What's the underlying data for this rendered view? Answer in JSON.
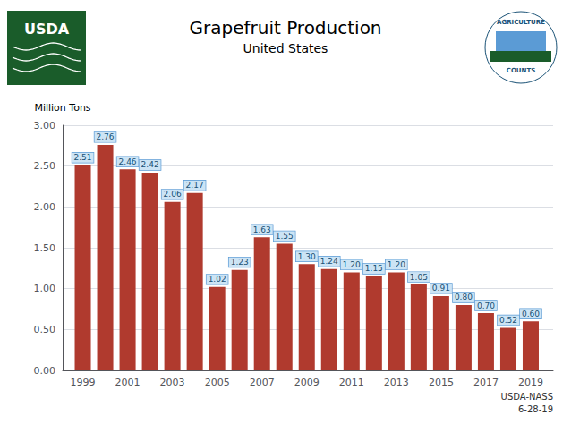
{
  "chart_data": {
    "type": "bar",
    "title": "Grapefruit Production",
    "subtitle": "United States",
    "ylabel": "Million Tons",
    "annotations": [
      "USDA-NASS",
      "6-28-19",
      "USDA",
      "AGRICULTURE",
      "COUNTS"
    ],
    "x": [
      1999,
      2000,
      2001,
      2002,
      2003,
      2004,
      2005,
      2006,
      2007,
      2008,
      2009,
      2010,
      2011,
      2012,
      2013,
      2014,
      2015,
      2016,
      2017,
      2018,
      2019
    ],
    "values": [
      2.51,
      2.76,
      2.46,
      2.42,
      2.06,
      2.17,
      1.02,
      1.23,
      1.63,
      1.55,
      1.3,
      1.24,
      1.2,
      1.15,
      1.2,
      1.05,
      0.91,
      0.8,
      0.7,
      0.52,
      0.6
    ],
    "value_labels": [
      "2.51",
      "2.76",
      "2.46",
      "2.42",
      "2.06",
      "2.17",
      "1.02",
      "1.23",
      "1.63",
      "1.55",
      "1.30",
      "1.24",
      "1.20",
      "1.15",
      "1.20",
      "1.05",
      "0.91",
      "0.80",
      "0.70",
      "0.52",
      "0.60"
    ],
    "data_labels": true,
    "color": "#b03a2e",
    "xlim": [
      1998.1,
      2020.0
    ],
    "xticks": [
      1999,
      2001,
      2003,
      2005,
      2007,
      2009,
      2011,
      2013,
      2015,
      2017,
      2019
    ],
    "ylim": [
      0.0,
      3.0
    ],
    "yticks": [
      {
        "value": 0.0,
        "label": "0.00"
      },
      {
        "value": 0.5,
        "label": "0.50"
      },
      {
        "value": 1.0,
        "label": "1.00"
      },
      {
        "value": 1.5,
        "label": "1.50"
      },
      {
        "value": 2.0,
        "label": "2.00"
      },
      {
        "value": 2.5,
        "label": "2.50"
      },
      {
        "value": 3.0,
        "label": "3.00"
      }
    ],
    "grid": true
  }
}
